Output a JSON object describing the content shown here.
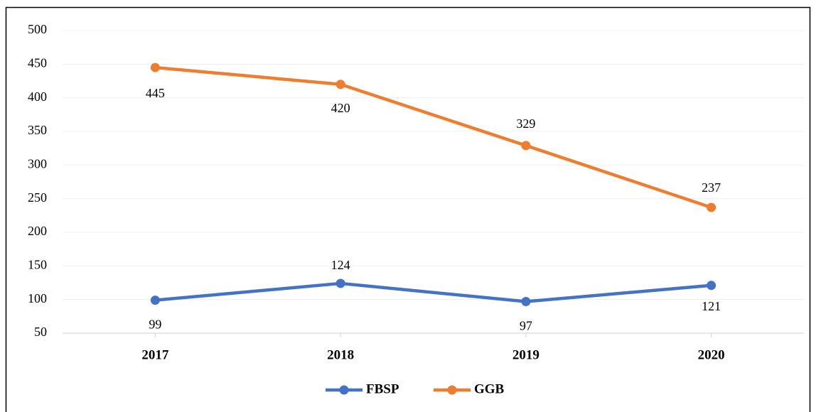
{
  "chart_data": {
    "type": "line",
    "categories": [
      "2017",
      "2018",
      "2019",
      "2020"
    ],
    "series": [
      {
        "name": "FBSP",
        "color": "#4472c4",
        "values": [
          99,
          124,
          97,
          121
        ]
      },
      {
        "name": "GGB",
        "color": "#ed7d31",
        "values": [
          445,
          420,
          329,
          237
        ]
      }
    ],
    "ylim": [
      50,
      500
    ],
    "yticks": [
      50,
      100,
      150,
      200,
      250,
      300,
      350,
      400,
      450,
      500
    ],
    "grid": true,
    "legend": "bottom"
  }
}
